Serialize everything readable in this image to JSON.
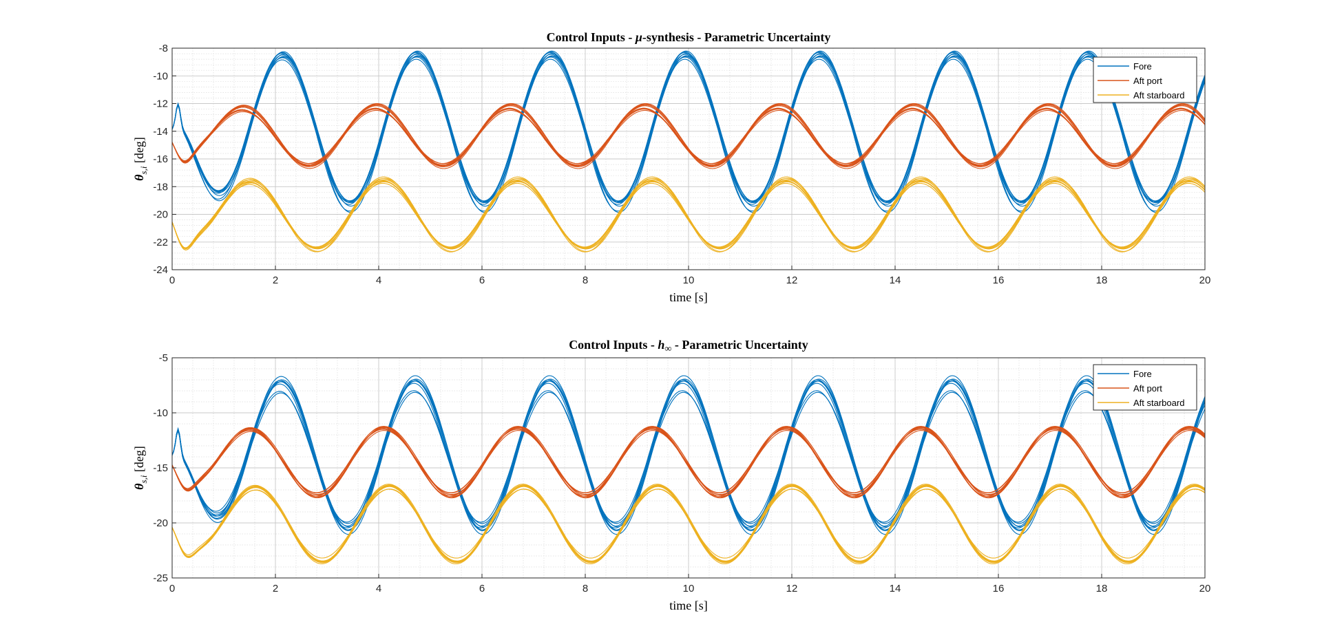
{
  "figure": {
    "colors": {
      "background": "#ffffff",
      "axes_box": "#262626",
      "grid": "#dcdcdc",
      "Fore": "#0072BD",
      "Aft port": "#D95319",
      "Aft starboard": "#EDB120"
    }
  },
  "chart_data": [
    {
      "type": "line",
      "title": "Control Inputs - μ-synthesis - Parametric Uncertainty",
      "title_parts": [
        "Control Inputs - ",
        "μ",
        "-synthesis - Parametric Uncertainty"
      ],
      "xlabel": "time [s]",
      "ylabel": "θs,i [deg]",
      "ylabel_parts": [
        "θ",
        "s,i",
        " [deg]"
      ],
      "xlim": [
        0,
        20
      ],
      "ylim": [
        -24,
        -8
      ],
      "xticks": [
        0,
        2,
        4,
        6,
        8,
        10,
        12,
        14,
        16,
        18,
        20
      ],
      "yticks": [
        -24,
        -22,
        -20,
        -18,
        -16,
        -14,
        -12,
        -10,
        -8
      ],
      "grid": true,
      "minor_grid": true,
      "legend": {
        "position": "top-right",
        "entries": [
          "Fore",
          "Aft port",
          "Aft starboard"
        ]
      },
      "series": [
        {
          "name": "Fore",
          "model": {
            "amplitude": 5.45,
            "center": -13.9,
            "period": 2.6,
            "peak_time": 2.15
          },
          "initial": {
            "start": -13.9,
            "bump_time": 0.12,
            "bump_value": -11.8
          },
          "spread": 0.7,
          "runs": 9
        },
        {
          "name": "Aft port",
          "model": {
            "amplitude": 2.1,
            "center": -14.35,
            "period": 2.6,
            "peak_time": 1.35
          },
          "initial": {
            "start": -14.4,
            "dip_time": 0.27,
            "dip_value": -16.2
          },
          "spread": 0.35,
          "runs": 9
        },
        {
          "name": "Aft starboard",
          "model": {
            "amplitude": 2.5,
            "center": -20.0,
            "period": 2.6,
            "peak_time": 1.5
          },
          "initial": {
            "start": -20.0,
            "dip_time": 0.27,
            "dip_value": -22.5
          },
          "spread": 0.35,
          "runs": 9
        }
      ]
    },
    {
      "type": "line",
      "title": "Control Inputs - h∞ - Parametric Uncertainty",
      "title_parts": [
        "Control Inputs - ",
        "h",
        "∞",
        " - Parametric Uncertainty"
      ],
      "xlabel": "time [s]",
      "ylabel": "θs,i [deg]",
      "ylabel_parts": [
        "θ",
        "s,i",
        " [deg]"
      ],
      "xlim": [
        0,
        20
      ],
      "ylim": [
        -25,
        -5
      ],
      "xticks": [
        0,
        2,
        4,
        6,
        8,
        10,
        12,
        14,
        16,
        18,
        20
      ],
      "yticks": [
        -25,
        -20,
        -15,
        -10,
        -5
      ],
      "grid": true,
      "minor_grid": true,
      "legend": {
        "position": "top-right",
        "entries": [
          "Fore",
          "Aft port",
          "Aft starboard"
        ]
      },
      "series": [
        {
          "name": "Fore",
          "model": {
            "amplitude": 6.4,
            "center": -13.85,
            "period": 2.6,
            "peak_time": 2.1
          },
          "initial": {
            "start": -13.9,
            "bump_time": 0.12,
            "bump_value": -11.0
          },
          "spread": 1.1,
          "runs": 9
        },
        {
          "name": "Aft port",
          "model": {
            "amplitude": 3.0,
            "center": -14.45,
            "period": 2.6,
            "peak_time": 1.5
          },
          "initial": {
            "start": -14.4,
            "dip_time": 0.3,
            "dip_value": -16.6
          },
          "spread": 0.45,
          "runs": 9
        },
        {
          "name": "Aft starboard",
          "model": {
            "amplitude": 3.35,
            "center": -20.1,
            "period": 2.6,
            "peak_time": 1.6
          },
          "initial": {
            "start": -20.0,
            "dip_time": 0.3,
            "dip_value": -22.6
          },
          "spread": 0.45,
          "runs": 9
        }
      ]
    }
  ]
}
